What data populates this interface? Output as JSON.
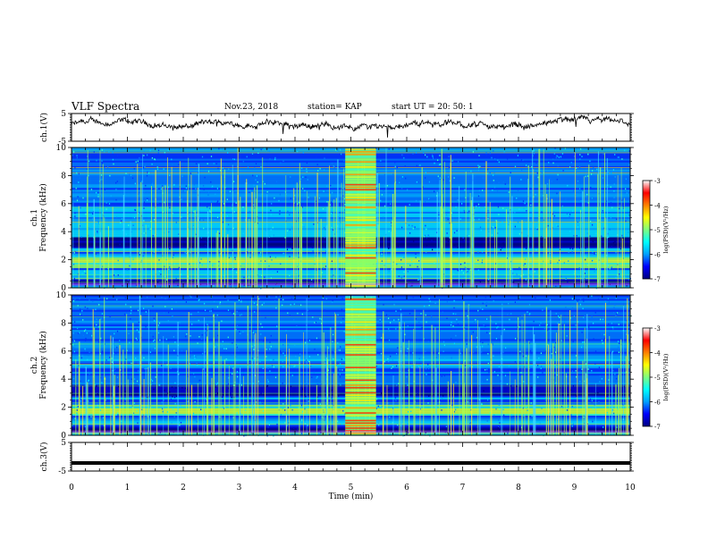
{
  "header": {
    "title": "VLF Spectra",
    "date": "Nov.23, 2018",
    "station": "station= KAP",
    "start_ut": "start  UT  =   20: 50: 1"
  },
  "colorbar": {
    "label": "log(PSD)(V²/Hz)",
    "ticks": [
      "-3",
      "-4",
      "-5",
      "-6",
      "-7"
    ],
    "range": [
      -7,
      -3
    ],
    "colors": [
      "#00007f",
      "#0000ff",
      "#00a0ff",
      "#00ffff",
      "#7fff7f",
      "#ffff00",
      "#ff8000",
      "#ff0000",
      "#ffffff"
    ]
  },
  "chart_data": [
    {
      "type": "line",
      "name": "ch1-waveform",
      "ylabel": "ch.1(V)",
      "ylim": [
        -5,
        5
      ],
      "yticks": [
        "5",
        "-5"
      ],
      "xlim": [
        0,
        10
      ],
      "description_values": {
        "baseline_v": 1.0,
        "amplitude_v": 1.5
      }
    },
    {
      "type": "heatmap",
      "name": "ch1-spectrogram",
      "ylabel": "ch.1\nFrequency  (kHz)",
      "ylim": [
        0,
        10
      ],
      "yticks": [
        "0",
        "2",
        "4",
        "6",
        "8",
        "10"
      ],
      "xlim": [
        0,
        10
      ],
      "bursts_min": [
        [
          4.9,
          5.45
        ]
      ],
      "dark_bands_khz": [
        [
          2.75,
          3.6
        ],
        [
          0.2,
          0.6
        ]
      ],
      "bright_bands_khz": [
        [
          1.3,
          2.1
        ]
      ]
    },
    {
      "type": "heatmap",
      "name": "ch2-spectrogram",
      "ylabel": "ch.2\nFrequency  (kHz)",
      "ylim": [
        0,
        10
      ],
      "yticks": [
        "0",
        "2",
        "4",
        "6",
        "8",
        "10"
      ],
      "xlim": [
        0,
        10
      ],
      "bursts_min": [
        [
          4.9,
          5.45
        ]
      ],
      "dark_bands_khz": [
        [
          2.75,
          3.6
        ],
        [
          0.2,
          0.6
        ]
      ],
      "bright_bands_khz": [
        [
          1.3,
          2.1
        ]
      ]
    },
    {
      "type": "line",
      "name": "ch3-waveform",
      "ylabel": "ch.3(V)",
      "ylim": [
        -5,
        5
      ],
      "yticks": [
        "5",
        "-5"
      ],
      "xlim": [
        0,
        10
      ],
      "constant_v": -2.2
    }
  ],
  "xaxis": {
    "label": "Time  (min)",
    "ticks": [
      "0",
      "1",
      "2",
      "3",
      "4",
      "5",
      "6",
      "7",
      "8",
      "9",
      "10"
    ]
  }
}
